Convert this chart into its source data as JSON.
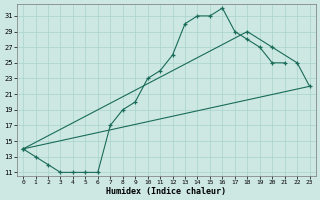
{
  "xlabel": "Humidex (Indice chaleur)",
  "bg_color": "#cde8e3",
  "grid_color": "#a8d5cc",
  "line_color": "#1a6b5a",
  "xlim": [
    -0.5,
    23.5
  ],
  "ylim": [
    10.5,
    32.5
  ],
  "xticks": [
    0,
    1,
    2,
    3,
    4,
    5,
    6,
    7,
    8,
    9,
    10,
    11,
    12,
    13,
    14,
    15,
    16,
    17,
    18,
    19,
    20,
    21,
    22,
    23
  ],
  "yticks": [
    11,
    13,
    15,
    17,
    19,
    21,
    23,
    25,
    27,
    29,
    31
  ],
  "curve1_x": [
    0,
    1,
    2,
    3,
    4,
    5,
    6,
    7,
    8,
    9,
    10,
    11,
    12,
    13,
    14,
    15,
    16,
    17,
    18,
    19,
    20,
    21
  ],
  "curve1_y": [
    14,
    13,
    12,
    11,
    11,
    11,
    11,
    17,
    19,
    20,
    23,
    24,
    26,
    30,
    31,
    31,
    32,
    29,
    28,
    27,
    25,
    25
  ],
  "curve2_x": [
    0,
    18,
    20,
    22,
    23
  ],
  "curve2_y": [
    14,
    29,
    27,
    25,
    22
  ],
  "curve3_x": [
    0,
    23
  ],
  "curve3_y": [
    14,
    22
  ]
}
